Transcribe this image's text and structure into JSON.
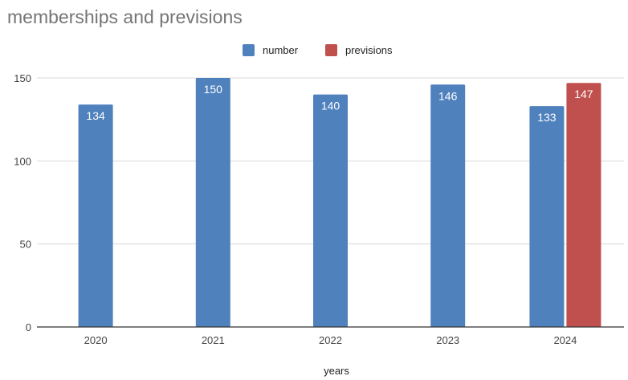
{
  "chart_data": {
    "type": "bar",
    "title": "memberships and previsions",
    "xlabel": "years",
    "ylabel": "",
    "categories": [
      "2020",
      "2021",
      "2022",
      "2023",
      "2024"
    ],
    "series": [
      {
        "name": "number",
        "color": "#4f81bd",
        "values": [
          134,
          150,
          140,
          146,
          133
        ]
      },
      {
        "name": "previsions",
        "color": "#c0504d",
        "values": [
          null,
          null,
          null,
          null,
          147
        ]
      }
    ],
    "ylim": [
      0,
      150
    ],
    "yticks": [
      0,
      50,
      100,
      150
    ],
    "grid": true,
    "legend_position": "top-center",
    "data_labels": true
  }
}
